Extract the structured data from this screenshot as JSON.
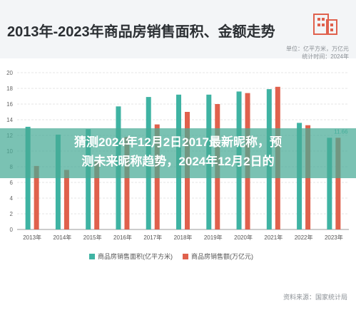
{
  "header": {
    "title": "2013年-2023年商品房销售面积、金额走势",
    "unit": "单位：亿平方米，万亿元",
    "date": "统计时间：2024年"
  },
  "overlay": {
    "line1": "猜测2024年12月2日2017最新昵称，预",
    "line2": "测未来昵称趋势，2024年12月2日的"
  },
  "source": "资料来源：国家统计局",
  "colors": {
    "area": "#3fb3a3",
    "amount": "#e0614d"
  },
  "chart_data": {
    "type": "bar",
    "categories": [
      "2013年",
      "2014年",
      "2015年",
      "2016年",
      "2017年",
      "2018年",
      "2019年",
      "2020年",
      "2021年",
      "2022年",
      "2023年"
    ],
    "series": [
      {
        "name": "商品房销售面积(亿平方米)",
        "values": [
          13.1,
          12.1,
          12.8,
          15.7,
          16.9,
          17.2,
          17.2,
          17.6,
          17.9,
          13.6,
          11.7
        ]
      },
      {
        "name": "商品房销售额(万亿元)",
        "values": [
          8.1,
          7.6,
          8.7,
          11.8,
          13.4,
          15.0,
          16.0,
          17.4,
          18.2,
          13.3,
          11.7
        ]
      }
    ],
    "ylim": [
      0,
      20
    ],
    "yticks": [
      "0",
      "2",
      "4",
      "6",
      "8",
      "10",
      "12",
      "14",
      "16",
      "18",
      "20"
    ],
    "data_labels": [
      {
        "category": "2023年",
        "text": "11.66"
      }
    ],
    "grid": true
  }
}
